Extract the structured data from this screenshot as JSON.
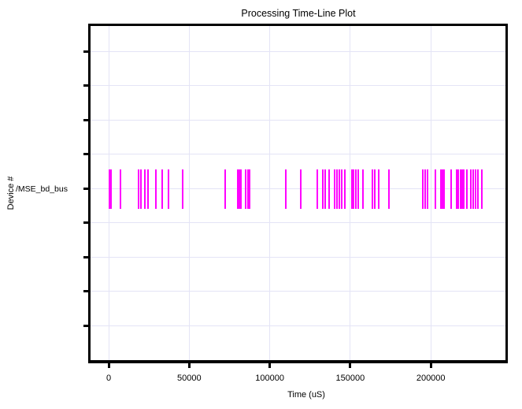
{
  "chart_data": {
    "type": "scatter",
    "subtype": "event-timeline",
    "title": "Processing Time-Line Plot",
    "xlabel": "Time (uS)",
    "ylabel": "Device #",
    "x_ticks": [
      0,
      50000,
      100000,
      150000,
      200000
    ],
    "x_tick_labels": [
      "0",
      "50000",
      "100000",
      "150000",
      "200000"
    ],
    "xlim": [
      -11200,
      246800
    ],
    "y_slots": 9,
    "row_slot": 4,
    "grid": true,
    "legend_position": "none",
    "colors": {
      "event": "#FF00FF",
      "grid": "#E4E4F6",
      "axis": "#000000",
      "background": "#FFFFFF"
    },
    "series": [
      {
        "name": "/MSE_bd_bus",
        "event_times_us": [
          500,
          1500,
          7300,
          18600,
          20000,
          22500,
          24400,
          29300,
          33200,
          37100,
          45900,
          72300,
          80200,
          81100,
          82100,
          85000,
          86500,
          87500,
          110000,
          119300,
          129500,
          133000,
          134400,
          136900,
          140300,
          141800,
          143200,
          144700,
          146600,
          151000,
          152000,
          153500,
          154900,
          157900,
          163700,
          165200,
          167600,
          174000,
          195000,
          196500,
          197900,
          202800,
          206300,
          207200,
          208200,
          212600,
          216000,
          217000,
          218500,
          219500,
          220400,
          222400,
          224800,
          226300,
          227800,
          229200,
          231700
        ]
      }
    ]
  }
}
